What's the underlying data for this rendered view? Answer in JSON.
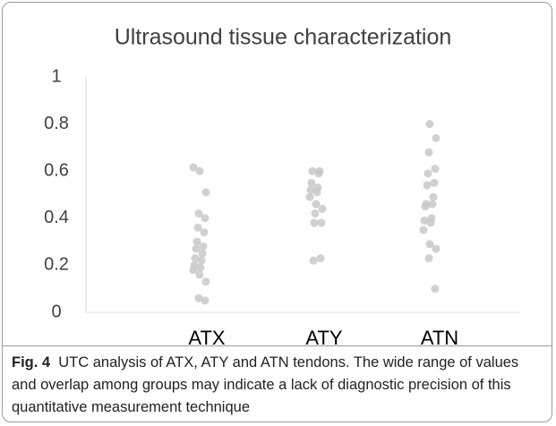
{
  "chart_data": {
    "type": "strip",
    "title": "Ultrasound tissue characterization",
    "categories": [
      "ATX",
      "ATY",
      "ATN"
    ],
    "values": [
      [
        0.616,
        0.6,
        0.51,
        0.42,
        0.4,
        0.36,
        0.34,
        0.3,
        0.28,
        0.27,
        0.25,
        0.23,
        0.22,
        0.2,
        0.19,
        0.18,
        0.16,
        0.13,
        0.06,
        0.05
      ],
      [
        0.6,
        0.6,
        0.59,
        0.55,
        0.53,
        0.52,
        0.51,
        0.49,
        0.46,
        0.44,
        0.42,
        0.38,
        0.38,
        0.23,
        0.22
      ],
      [
        0.8,
        0.74,
        0.68,
        0.61,
        0.59,
        0.55,
        0.54,
        0.49,
        0.46,
        0.46,
        0.45,
        0.4,
        0.39,
        0.38,
        0.35,
        0.29,
        0.27,
        0.23,
        0.1
      ]
    ],
    "color": "#c8c8c8",
    "ylim": [
      0,
      1
    ],
    "yticks": [
      0,
      0.2,
      0.4,
      0.6,
      0.8,
      1
    ]
  },
  "caption": {
    "label": "Fig. 4",
    "text": "UTC analysis of ATX, ATY and ATN tendons. The wide range of values and overlap among groups may indicate a lack of diagnostic precision of this quantitative measurement technique"
  }
}
